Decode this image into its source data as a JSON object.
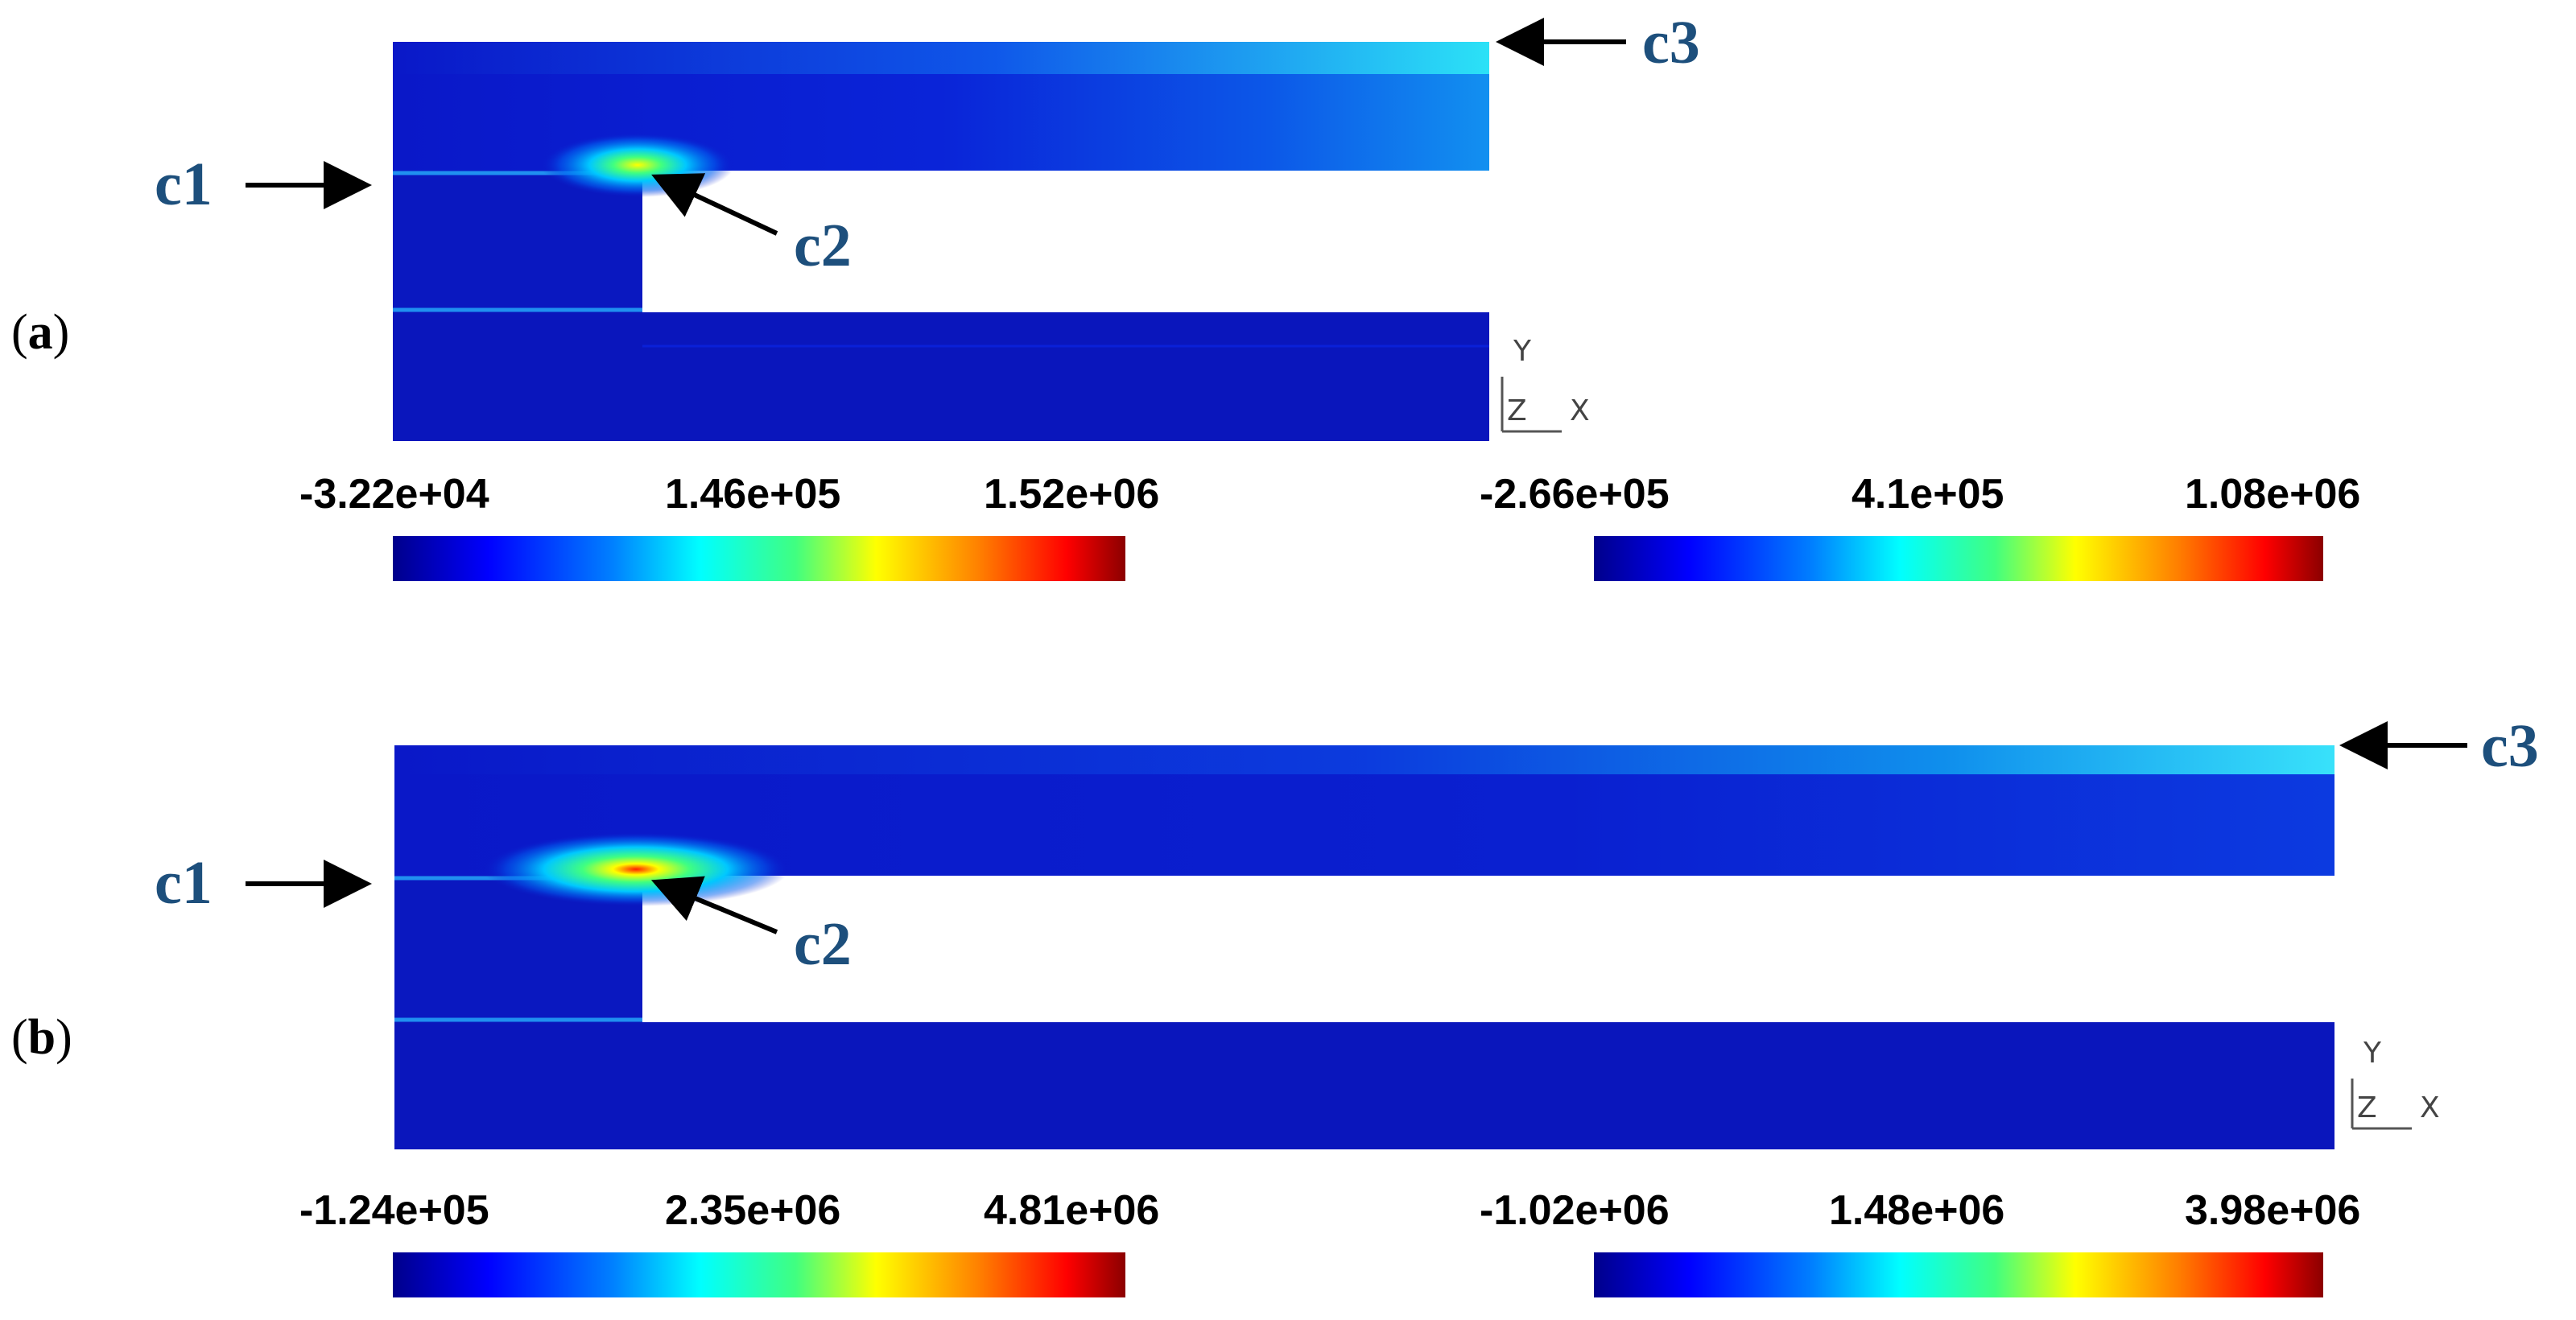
{
  "colormap": [
    "#00008b",
    "#0000ff",
    "#0080ff",
    "#00ffff",
    "#40ff80",
    "#ffff00",
    "#ff8000",
    "#ff0000",
    "#8b0000"
  ],
  "panels": [
    {
      "label_open": "(",
      "label_letter": "a",
      "label_close": ")",
      "markers": {
        "c1": "c1",
        "c2": "c2",
        "c3": "c3"
      },
      "axis": {
        "y": "Y",
        "z": "Z",
        "x": "X"
      },
      "colorbars": [
        {
          "min": "-3.22e+04",
          "mid": "1.46e+05",
          "max": "1.52e+06"
        },
        {
          "min": "-2.66e+05",
          "mid": "4.1e+05",
          "max": "1.08e+06"
        }
      ]
    },
    {
      "label_open": "(",
      "label_letter": "b",
      "label_close": ")",
      "markers": {
        "c1": "c1",
        "c2": "c2",
        "c3": "c3"
      },
      "axis": {
        "y": "Y",
        "z": "Z",
        "x": "X"
      },
      "colorbars": [
        {
          "min": "-1.24e+05",
          "mid": "2.35e+06",
          "max": "4.81e+06"
        },
        {
          "min": "-1.02e+06",
          "mid": "1.48e+06",
          "max": "3.98e+06"
        }
      ]
    }
  ]
}
